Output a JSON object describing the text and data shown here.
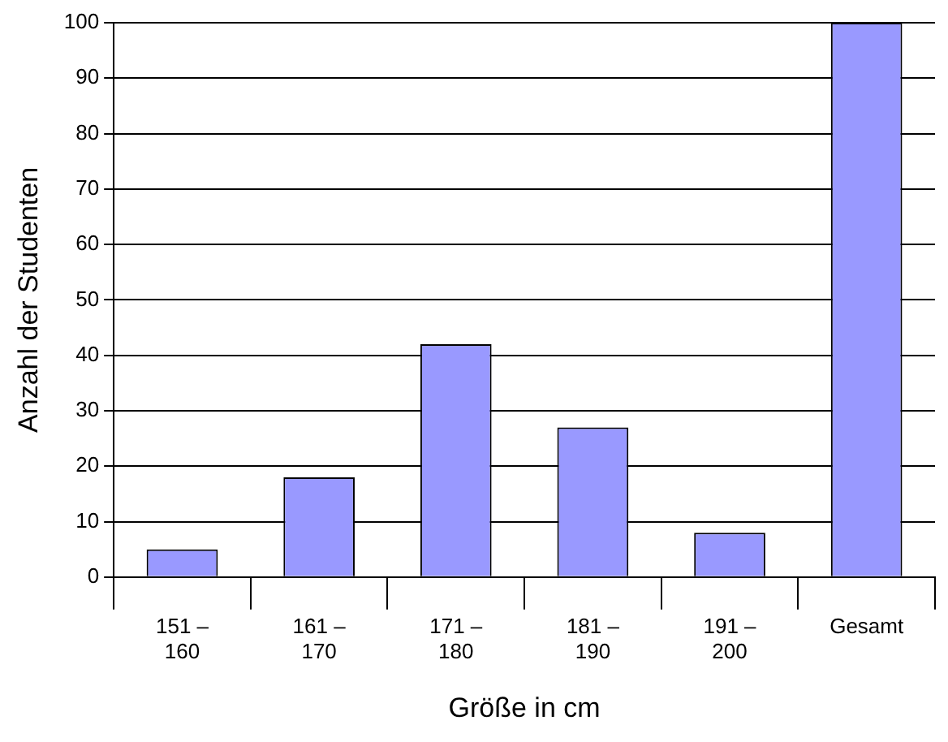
{
  "chart_data": {
    "type": "bar",
    "xlabel": "Größe in cm",
    "ylabel": "Anzahl der Studenten",
    "categories": [
      "151 –\n160",
      "161 –\n170",
      "171 –\n180",
      "181 –\n190",
      "191 –\n200",
      "Gesamt"
    ],
    "values": [
      5,
      18,
      42,
      27,
      8,
      100
    ],
    "color": "#9999ff",
    "ylim": [
      0,
      100
    ],
    "yticks": [
      0,
      10,
      20,
      30,
      40,
      50,
      60,
      70,
      80,
      90,
      100
    ],
    "grid": "y",
    "legend": false
  }
}
